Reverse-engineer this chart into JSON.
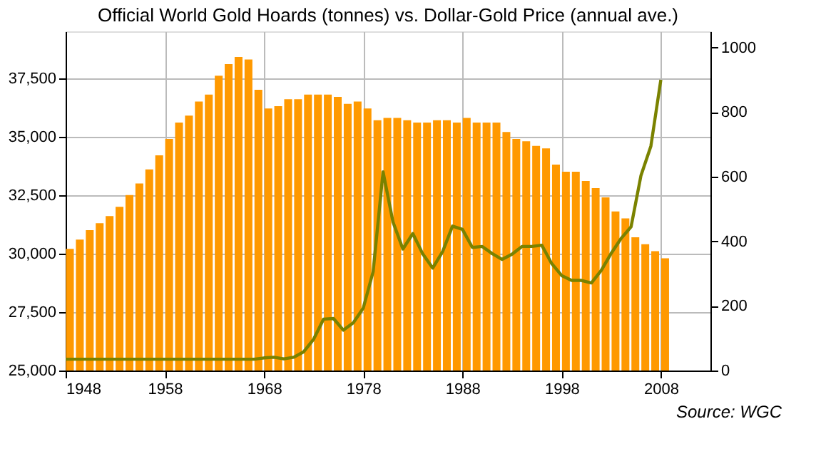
{
  "chart_data": {
    "type": "bar",
    "title": "Official World Gold Hoards (tonnes) vs. Dollar-Gold Price (annual ave.)",
    "x": [
      1948,
      1949,
      1950,
      1951,
      1952,
      1953,
      1954,
      1955,
      1956,
      1957,
      1958,
      1959,
      1960,
      1961,
      1962,
      1963,
      1964,
      1965,
      1966,
      1967,
      1968,
      1969,
      1970,
      1971,
      1972,
      1973,
      1974,
      1975,
      1976,
      1977,
      1978,
      1979,
      1980,
      1981,
      1982,
      1983,
      1984,
      1985,
      1986,
      1987,
      1988,
      1989,
      1990,
      1991,
      1992,
      1993,
      1994,
      1995,
      1996,
      1997,
      1998,
      1999,
      2000,
      2001,
      2002,
      2003,
      2004,
      2005,
      2006,
      2007,
      2008
    ],
    "series": [
      {
        "color": "#ff9900",
        "values": [
          30200,
          30600,
          31000,
          31300,
          31600,
          32000,
          32500,
          33000,
          33600,
          34200,
          34900,
          35600,
          35900,
          36500,
          36800,
          37600,
          38100,
          38400,
          38300,
          37000,
          36200,
          36300,
          36600,
          36600,
          36800,
          36800,
          36800,
          36700,
          36400,
          36500,
          36200,
          35700,
          35800,
          35800,
          35700,
          35600,
          35600,
          35700,
          35700,
          35600,
          35800,
          35600,
          35600,
          35600,
          35200,
          34900,
          34800,
          34600,
          34500,
          33800,
          33500,
          33500,
          33100,
          32800,
          32400,
          31800,
          31500,
          30700,
          30400,
          30100,
          29800
        ]
      },
      {
        "type": "line",
        "axis": "y2",
        "color": "#7a8200",
        "values": [
          35,
          35,
          35,
          35,
          35,
          35,
          35,
          35,
          35,
          35,
          35,
          35,
          35,
          35,
          35,
          35,
          35,
          35,
          35,
          35,
          39,
          41,
          36,
          41,
          58,
          97,
          159,
          161,
          125,
          148,
          193,
          306,
          615,
          460,
          376,
          424,
          361,
          317,
          368,
          447,
          437,
          381,
          384,
          362,
          344,
          360,
          384,
          384,
          388,
          331,
          294,
          279,
          279,
          271,
          310,
          363,
          409,
          445,
          604,
          695,
          900
        ]
      }
    ],
    "xlim": [
      1948,
      2013
    ],
    "xticks": [
      1948,
      1958,
      1968,
      1978,
      1988,
      1998,
      2008
    ],
    "ylim": [
      25000,
      39500
    ],
    "yticks": [
      {
        "value": 25000,
        "label": "25,000"
      },
      {
        "value": 27500,
        "label": "27,500"
      },
      {
        "value": 30000,
        "label": "30,000"
      },
      {
        "value": 32500,
        "label": "32,500"
      },
      {
        "value": 35000,
        "label": "35,000"
      },
      {
        "value": 37500,
        "label": "37,500"
      }
    ],
    "y2lim": [
      0,
      1050
    ],
    "y2ticks": [
      0,
      200,
      400,
      600,
      800,
      1000
    ],
    "grid": true,
    "marker": "none",
    "line_style": "solid",
    "annotations": [
      "Source: WGC"
    ]
  }
}
